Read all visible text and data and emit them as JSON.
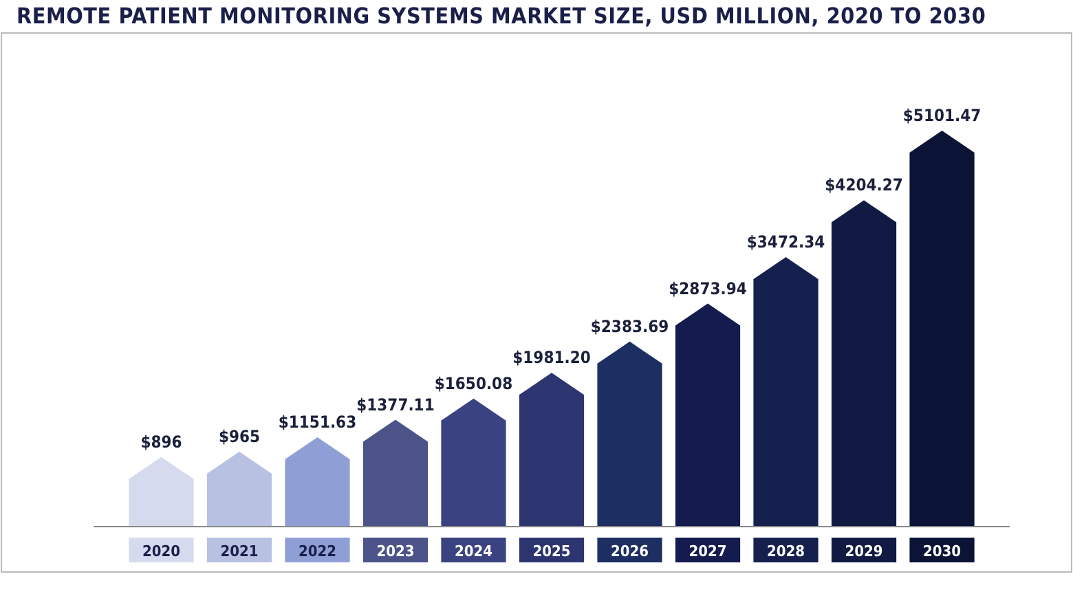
{
  "chart_data": {
    "type": "bar",
    "title": "REMOTE PATIENT MONITORING SYSTEMS MARKET SIZE, USD MILLION, 2020 TO 2030",
    "categories": [
      "2020",
      "2021",
      "2022",
      "2023",
      "2024",
      "2025",
      "2026",
      "2027",
      "2028",
      "2029",
      "2030"
    ],
    "values": [
      896,
      965,
      1151.63,
      1377.11,
      1650.08,
      1981.2,
      2383.69,
      2873.94,
      3472.34,
      4204.27,
      5101.47
    ],
    "value_labels": [
      "$896",
      "$965",
      "$1151.63",
      "$1377.11",
      "$1650.08",
      "$1981.20",
      "$2383.69",
      "$2873.94",
      "$3472.34",
      "$4204.27",
      "$5101.47"
    ],
    "colors": [
      "#d6daee",
      "#b9c1e2",
      "#8f9fd6",
      "#4b5389",
      "#3a4281",
      "#2d3571",
      "#1d2f62",
      "#141b4f",
      "#15204f",
      "#111a43",
      "#0b1436"
    ]
  }
}
